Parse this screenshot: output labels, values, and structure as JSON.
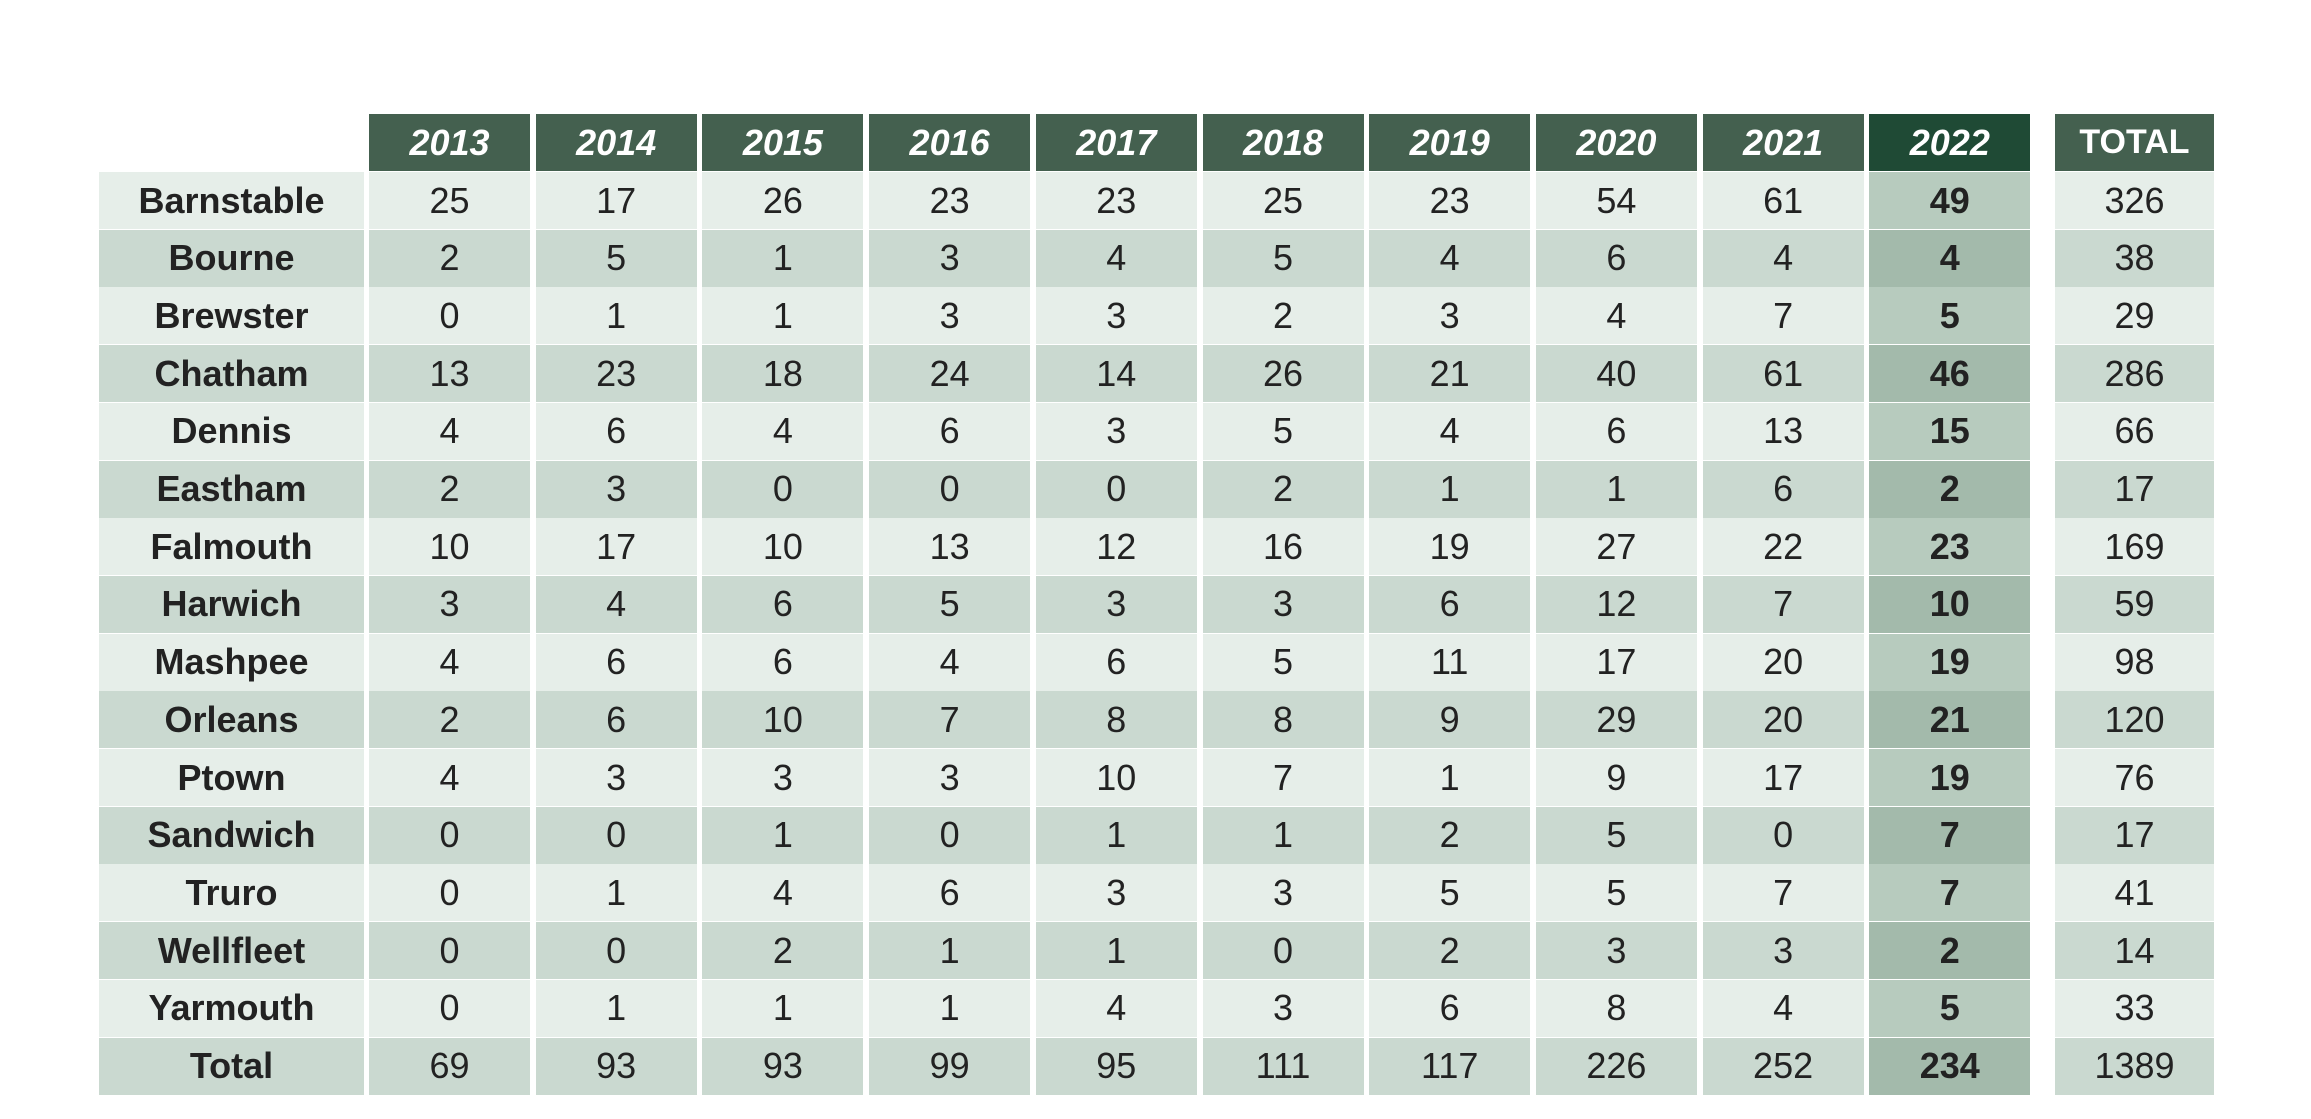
{
  "chart_data": {
    "type": "table",
    "columns": [
      "2013",
      "2014",
      "2015",
      "2016",
      "2017",
      "2018",
      "2019",
      "2020",
      "2021",
      "2022"
    ],
    "highlight_column": "2022",
    "total_label": "TOTAL",
    "rows": [
      {
        "name": "Barnstable",
        "values": [
          25,
          17,
          26,
          23,
          23,
          25,
          23,
          54,
          61,
          49
        ],
        "total": 326
      },
      {
        "name": "Bourne",
        "values": [
          2,
          5,
          1,
          3,
          4,
          5,
          4,
          6,
          4,
          4
        ],
        "total": 38
      },
      {
        "name": "Brewster",
        "values": [
          0,
          1,
          1,
          3,
          3,
          2,
          3,
          4,
          7,
          5
        ],
        "total": 29
      },
      {
        "name": "Chatham",
        "values": [
          13,
          23,
          18,
          24,
          14,
          26,
          21,
          40,
          61,
          46
        ],
        "total": 286
      },
      {
        "name": "Dennis",
        "values": [
          4,
          6,
          4,
          6,
          3,
          5,
          4,
          6,
          13,
          15
        ],
        "total": 66
      },
      {
        "name": "Eastham",
        "values": [
          2,
          3,
          0,
          0,
          0,
          2,
          1,
          1,
          6,
          2
        ],
        "total": 17
      },
      {
        "name": "Falmouth",
        "values": [
          10,
          17,
          10,
          13,
          12,
          16,
          19,
          27,
          22,
          23
        ],
        "total": 169
      },
      {
        "name": "Harwich",
        "values": [
          3,
          4,
          6,
          5,
          3,
          3,
          6,
          12,
          7,
          10
        ],
        "total": 59
      },
      {
        "name": "Mashpee",
        "values": [
          4,
          6,
          6,
          4,
          6,
          5,
          11,
          17,
          20,
          19
        ],
        "total": 98
      },
      {
        "name": "Orleans",
        "values": [
          2,
          6,
          10,
          7,
          8,
          8,
          9,
          29,
          20,
          21
        ],
        "total": 120
      },
      {
        "name": "Ptown",
        "values": [
          4,
          3,
          3,
          3,
          10,
          7,
          1,
          9,
          17,
          19
        ],
        "total": 76
      },
      {
        "name": "Sandwich",
        "values": [
          0,
          0,
          1,
          0,
          1,
          1,
          2,
          5,
          0,
          7
        ],
        "total": 17
      },
      {
        "name": "Truro",
        "values": [
          0,
          1,
          4,
          6,
          3,
          3,
          5,
          5,
          7,
          7
        ],
        "total": 41
      },
      {
        "name": "Wellfleet",
        "values": [
          0,
          0,
          2,
          1,
          1,
          0,
          2,
          3,
          3,
          2
        ],
        "total": 14
      },
      {
        "name": "Yarmouth",
        "values": [
          0,
          1,
          1,
          1,
          4,
          3,
          6,
          8,
          4,
          5
        ],
        "total": 33
      },
      {
        "name": "Total",
        "values": [
          69,
          93,
          93,
          99,
          95,
          111,
          117,
          226,
          252,
          234
        ],
        "total": 1389
      }
    ]
  },
  "colors": {
    "header": "#44604f",
    "header_highlight": "#1f4a35",
    "row_light": "#e6eee9",
    "row_dark": "#cad9d0",
    "highlight_light": "#b7cbbe",
    "highlight_dark": "#a3baab"
  }
}
